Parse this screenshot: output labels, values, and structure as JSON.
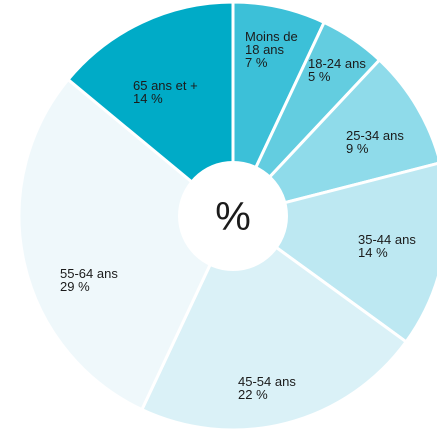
{
  "chart_data": {
    "type": "pie",
    "donut": true,
    "center_label": "%",
    "slices": [
      {
        "label_lines": [
          "Moins de",
          "18 ans"
        ],
        "value": 7,
        "value_label": "7 %",
        "color": "#3cc0d8"
      },
      {
        "label_lines": [
          "18-24 ans"
        ],
        "value": 5,
        "value_label": "5 %",
        "color": "#63cde0"
      },
      {
        "label_lines": [
          "25-34 ans"
        ],
        "value": 9,
        "value_label": "9 %",
        "color": "#8fdbea"
      },
      {
        "label_lines": [
          "35-44 ans"
        ],
        "value": 14,
        "value_label": "14 %",
        "color": "#bde8f2"
      },
      {
        "label_lines": [
          "45-54 ans"
        ],
        "value": 22,
        "value_label": "22 %",
        "color": "#daf1f7"
      },
      {
        "label_lines": [
          "55-64 ans"
        ],
        "value": 29,
        "value_label": "29 %",
        "color": "#eff8fb"
      },
      {
        "label_lines": [
          "65 ans et +"
        ],
        "value": 14,
        "value_label": "14 %",
        "color": "#00abc7"
      }
    ]
  }
}
